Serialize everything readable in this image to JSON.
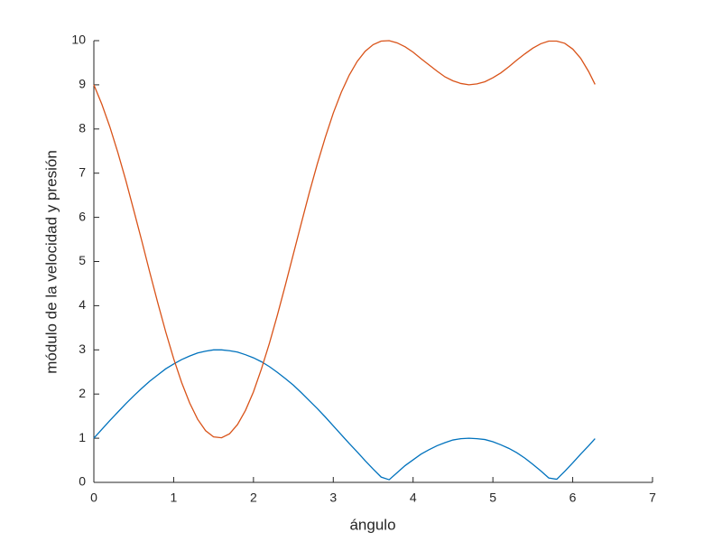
{
  "chart_data": {
    "type": "line",
    "xlabel": "ángulo",
    "ylabel": "módulo de la velocidad y presión",
    "x": [
      0,
      0.1,
      0.2,
      0.3,
      0.4,
      0.5,
      0.6,
      0.7,
      0.8,
      0.9,
      1.0,
      1.1,
      1.2,
      1.3,
      1.4,
      1.5,
      1.6,
      1.7,
      1.8,
      1.9,
      2.0,
      2.1,
      2.2,
      2.3,
      2.4,
      2.5,
      2.6,
      2.7,
      2.8,
      2.9,
      3.0,
      3.1,
      3.2,
      3.3,
      3.4,
      3.5,
      3.6,
      3.7,
      3.8,
      3.9,
      4.0,
      4.1,
      4.2,
      4.3,
      4.4,
      4.5,
      4.6,
      4.7,
      4.8,
      4.9,
      5.0,
      5.1,
      5.2,
      5.3,
      5.4,
      5.5,
      5.6,
      5.7,
      5.8,
      5.9,
      6.0,
      6.1,
      6.2,
      6.28
    ],
    "series": [
      {
        "color": "#0072bd",
        "values": [
          1,
          1.2,
          1.4,
          1.59,
          1.78,
          1.96,
          2.13,
          2.29,
          2.43,
          2.57,
          2.68,
          2.78,
          2.86,
          2.93,
          2.97,
          3.0,
          3.0,
          2.98,
          2.95,
          2.89,
          2.82,
          2.73,
          2.62,
          2.49,
          2.35,
          2.2,
          2.03,
          1.85,
          1.67,
          1.48,
          1.28,
          1.08,
          0.88,
          0.69,
          0.49,
          0.3,
          0.12,
          0.06,
          0.22,
          0.38,
          0.51,
          0.64,
          0.74,
          0.83,
          0.9,
          0.96,
          0.99,
          1.0,
          0.99,
          0.97,
          0.92,
          0.85,
          0.77,
          0.67,
          0.55,
          0.41,
          0.26,
          0.1,
          0.07,
          0.25,
          0.44,
          0.64,
          0.83,
          0.99
        ]
      },
      {
        "color": "#d95319",
        "values": [
          9,
          8.56,
          8.05,
          7.47,
          6.84,
          6.16,
          5.47,
          4.76,
          4.07,
          3.41,
          2.8,
          2.26,
          1.8,
          1.43,
          1.17,
          1.03,
          1.01,
          1.1,
          1.31,
          1.63,
          2.05,
          2.57,
          3.15,
          3.79,
          4.47,
          5.17,
          5.87,
          6.56,
          7.21,
          7.81,
          8.36,
          8.83,
          9.22,
          9.53,
          9.76,
          9.91,
          9.99,
          10.0,
          9.95,
          9.86,
          9.74,
          9.59,
          9.45,
          9.31,
          9.18,
          9.09,
          9.03,
          9.0,
          9.02,
          9.07,
          9.16,
          9.27,
          9.41,
          9.56,
          9.7,
          9.83,
          9.93,
          9.99,
          9.99,
          9.94,
          9.81,
          9.6,
          9.3,
          9.01
        ]
      }
    ],
    "xlim": [
      0,
      7
    ],
    "xticks": [
      0,
      1,
      2,
      3,
      4,
      5,
      6,
      7
    ],
    "ylim": [
      0,
      10
    ],
    "yticks": [
      0,
      1,
      2,
      3,
      4,
      5,
      6,
      7,
      8,
      9,
      10
    ]
  }
}
